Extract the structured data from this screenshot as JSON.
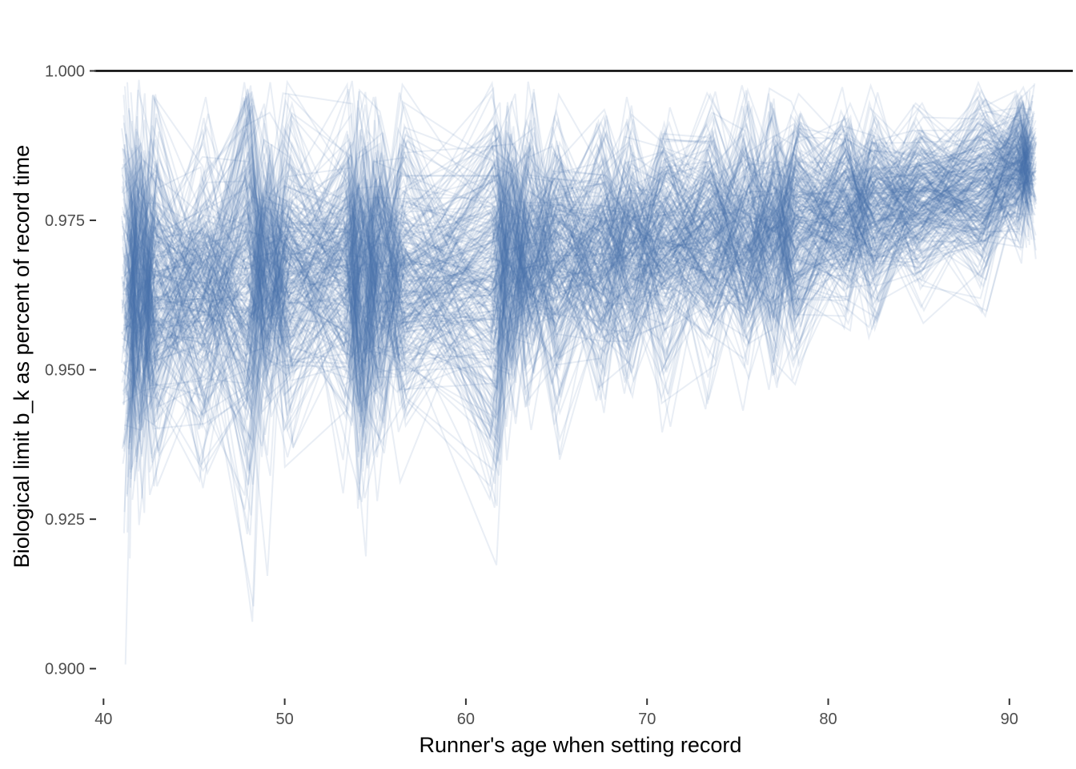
{
  "chart_data": {
    "type": "line",
    "xlabel": "Runner's age when setting record",
    "ylabel": "Biological limit b_k as percent of record time",
    "xlim": [
      39.5,
      93.5
    ],
    "ylim": [
      0.895,
      1.0065
    ],
    "x_ticks": [
      {
        "value": 40,
        "label": "40"
      },
      {
        "value": 50,
        "label": "50"
      },
      {
        "value": 60,
        "label": "60"
      },
      {
        "value": 70,
        "label": "70"
      },
      {
        "value": 80,
        "label": "80"
      },
      {
        "value": 90,
        "label": "90"
      }
    ],
    "y_ticks": [
      {
        "value": 0.9,
        "label": "0.900"
      },
      {
        "value": 0.925,
        "label": "0.925"
      },
      {
        "value": 0.95,
        "label": "0.950"
      },
      {
        "value": 0.975,
        "label": "0.975"
      },
      {
        "value": 1.0,
        "label": "1.000"
      }
    ],
    "reference_line": {
      "y": 1.0,
      "color": "#000000"
    },
    "grid": false,
    "legend": "none",
    "line_color": "#4a74ad",
    "line_opacity": 0.12,
    "n_series": 300,
    "x": [
      41.3,
      42.0,
      42.8,
      45.5,
      48.0,
      49.0,
      50.2,
      53.5,
      54.3,
      55.2,
      56.5,
      61.6,
      62.5,
      63.5,
      65.0,
      67.5,
      69.0,
      71.0,
      73.5,
      75.5,
      77.0,
      78.2,
      81.0,
      82.5,
      85.0,
      88.5,
      90.5,
      91.2
    ],
    "mean_curve": [
      0.962,
      0.965,
      0.963,
      0.964,
      0.963,
      0.966,
      0.967,
      0.966,
      0.964,
      0.965,
      0.966,
      0.966,
      0.968,
      0.969,
      0.968,
      0.969,
      0.97,
      0.971,
      0.972,
      0.972,
      0.973,
      0.974,
      0.976,
      0.976,
      0.978,
      0.98,
      0.984,
      0.985
    ],
    "spread_curve": [
      0.016,
      0.013,
      0.012,
      0.011,
      0.018,
      0.012,
      0.012,
      0.012,
      0.015,
      0.013,
      0.011,
      0.016,
      0.012,
      0.011,
      0.011,
      0.01,
      0.01,
      0.01,
      0.01,
      0.01,
      0.01,
      0.01,
      0.008,
      0.008,
      0.007,
      0.007,
      0.006,
      0.005
    ]
  }
}
